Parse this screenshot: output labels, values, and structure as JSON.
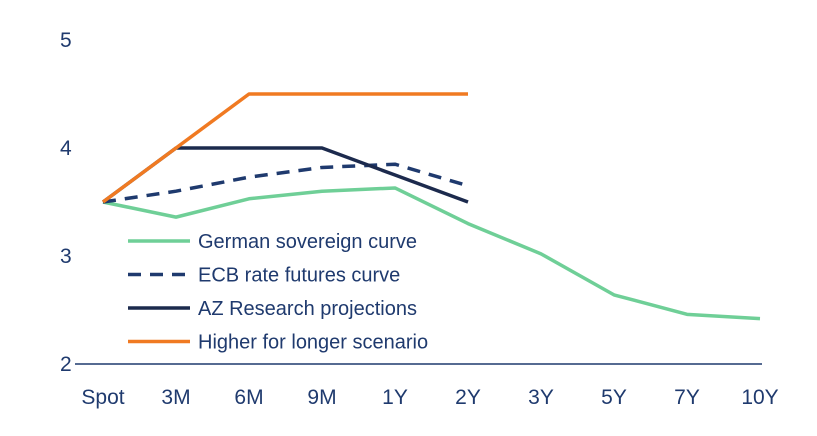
{
  "chart_data": {
    "type": "line",
    "title": "",
    "xlabel": "",
    "ylabel": "",
    "categories": [
      "Spot",
      "3M",
      "6M",
      "9M",
      "1Y",
      "2Y",
      "3Y",
      "5Y",
      "7Y",
      "10Y"
    ],
    "y_ticks": [
      "2",
      "3",
      "4",
      "5"
    ],
    "ylim": [
      2,
      5
    ],
    "grid": false,
    "legend_position": "center-left",
    "axis_color": "#1f3a6e",
    "text_color": "#1f3a6e",
    "series": [
      {
        "name": "German sovereign curve",
        "color": "#6fcf97",
        "dash": "solid",
        "values": [
          3.5,
          3.36,
          3.53,
          3.6,
          3.63,
          3.3,
          3.02,
          2.64,
          2.46,
          2.42
        ]
      },
      {
        "name": "ECB rate futures curve",
        "color": "#1f3a6e",
        "dash": "dashed",
        "values": [
          3.5,
          3.6,
          3.73,
          3.82,
          3.85,
          3.65,
          null,
          null,
          null,
          null
        ]
      },
      {
        "name": "AZ Research projections",
        "color": "#1c2a4d",
        "dash": "solid",
        "values": [
          3.5,
          4.0,
          4.0,
          4.0,
          3.75,
          3.5,
          null,
          null,
          null,
          null
        ]
      },
      {
        "name": "Higher for longer scenario",
        "color": "#f07a22",
        "dash": "solid",
        "values": [
          3.5,
          4.0,
          4.5,
          4.5,
          4.5,
          4.5,
          null,
          null,
          null,
          null
        ]
      }
    ]
  }
}
